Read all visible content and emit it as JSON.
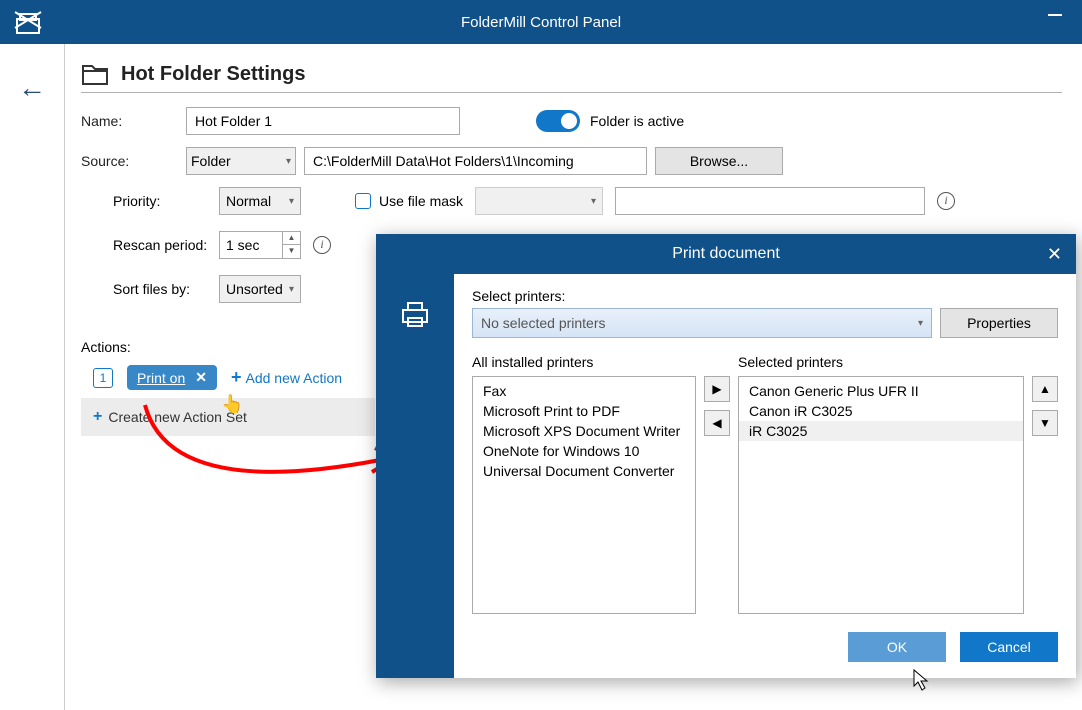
{
  "titlebar": {
    "title": "FolderMill Control Panel"
  },
  "page": {
    "heading": "Hot Folder Settings"
  },
  "form": {
    "name_label": "Name:",
    "name_value": "Hot Folder 1",
    "active_label": "Folder is active",
    "source_label": "Source:",
    "source_type": "Folder",
    "source_path": "C:\\FolderMill Data\\Hot Folders\\1\\Incoming",
    "browse_label": "Browse..."
  },
  "settings": {
    "priority_label": "Priority:",
    "priority_value": "Normal",
    "rescan_label": "Rescan period:",
    "rescan_value": "1 sec",
    "sort_label": "Sort files by:",
    "sort_value": "Unsorted",
    "filemask_label": "Use file mask"
  },
  "actions": {
    "header": "Actions:",
    "badge": "1",
    "pill_label": "Print on",
    "add_label": "Add new Action",
    "create_label": "Create new Action Set"
  },
  "dialog": {
    "title": "Print document",
    "select_label": "Select printers:",
    "combo_placeholder": "No selected printers",
    "props_label": "Properties",
    "all_header": "All installed printers",
    "sel_header": "Selected printers",
    "all_list": [
      "Fax",
      "Microsoft Print to PDF",
      "Microsoft XPS Document Writer",
      "OneNote for Windows 10",
      "Universal Document Converter"
    ],
    "sel_list": [
      "Canon Generic Plus UFR II",
      "Canon iR C3025",
      "iR C3025"
    ],
    "selected_index": 2,
    "ok_label": "OK",
    "cancel_label": "Cancel"
  },
  "colors": {
    "primary": "#0f5188",
    "accent": "#1177c8",
    "pill": "#3887c7",
    "ok_btn": "#5a9cd6",
    "red_arrow": "#ff0000"
  }
}
